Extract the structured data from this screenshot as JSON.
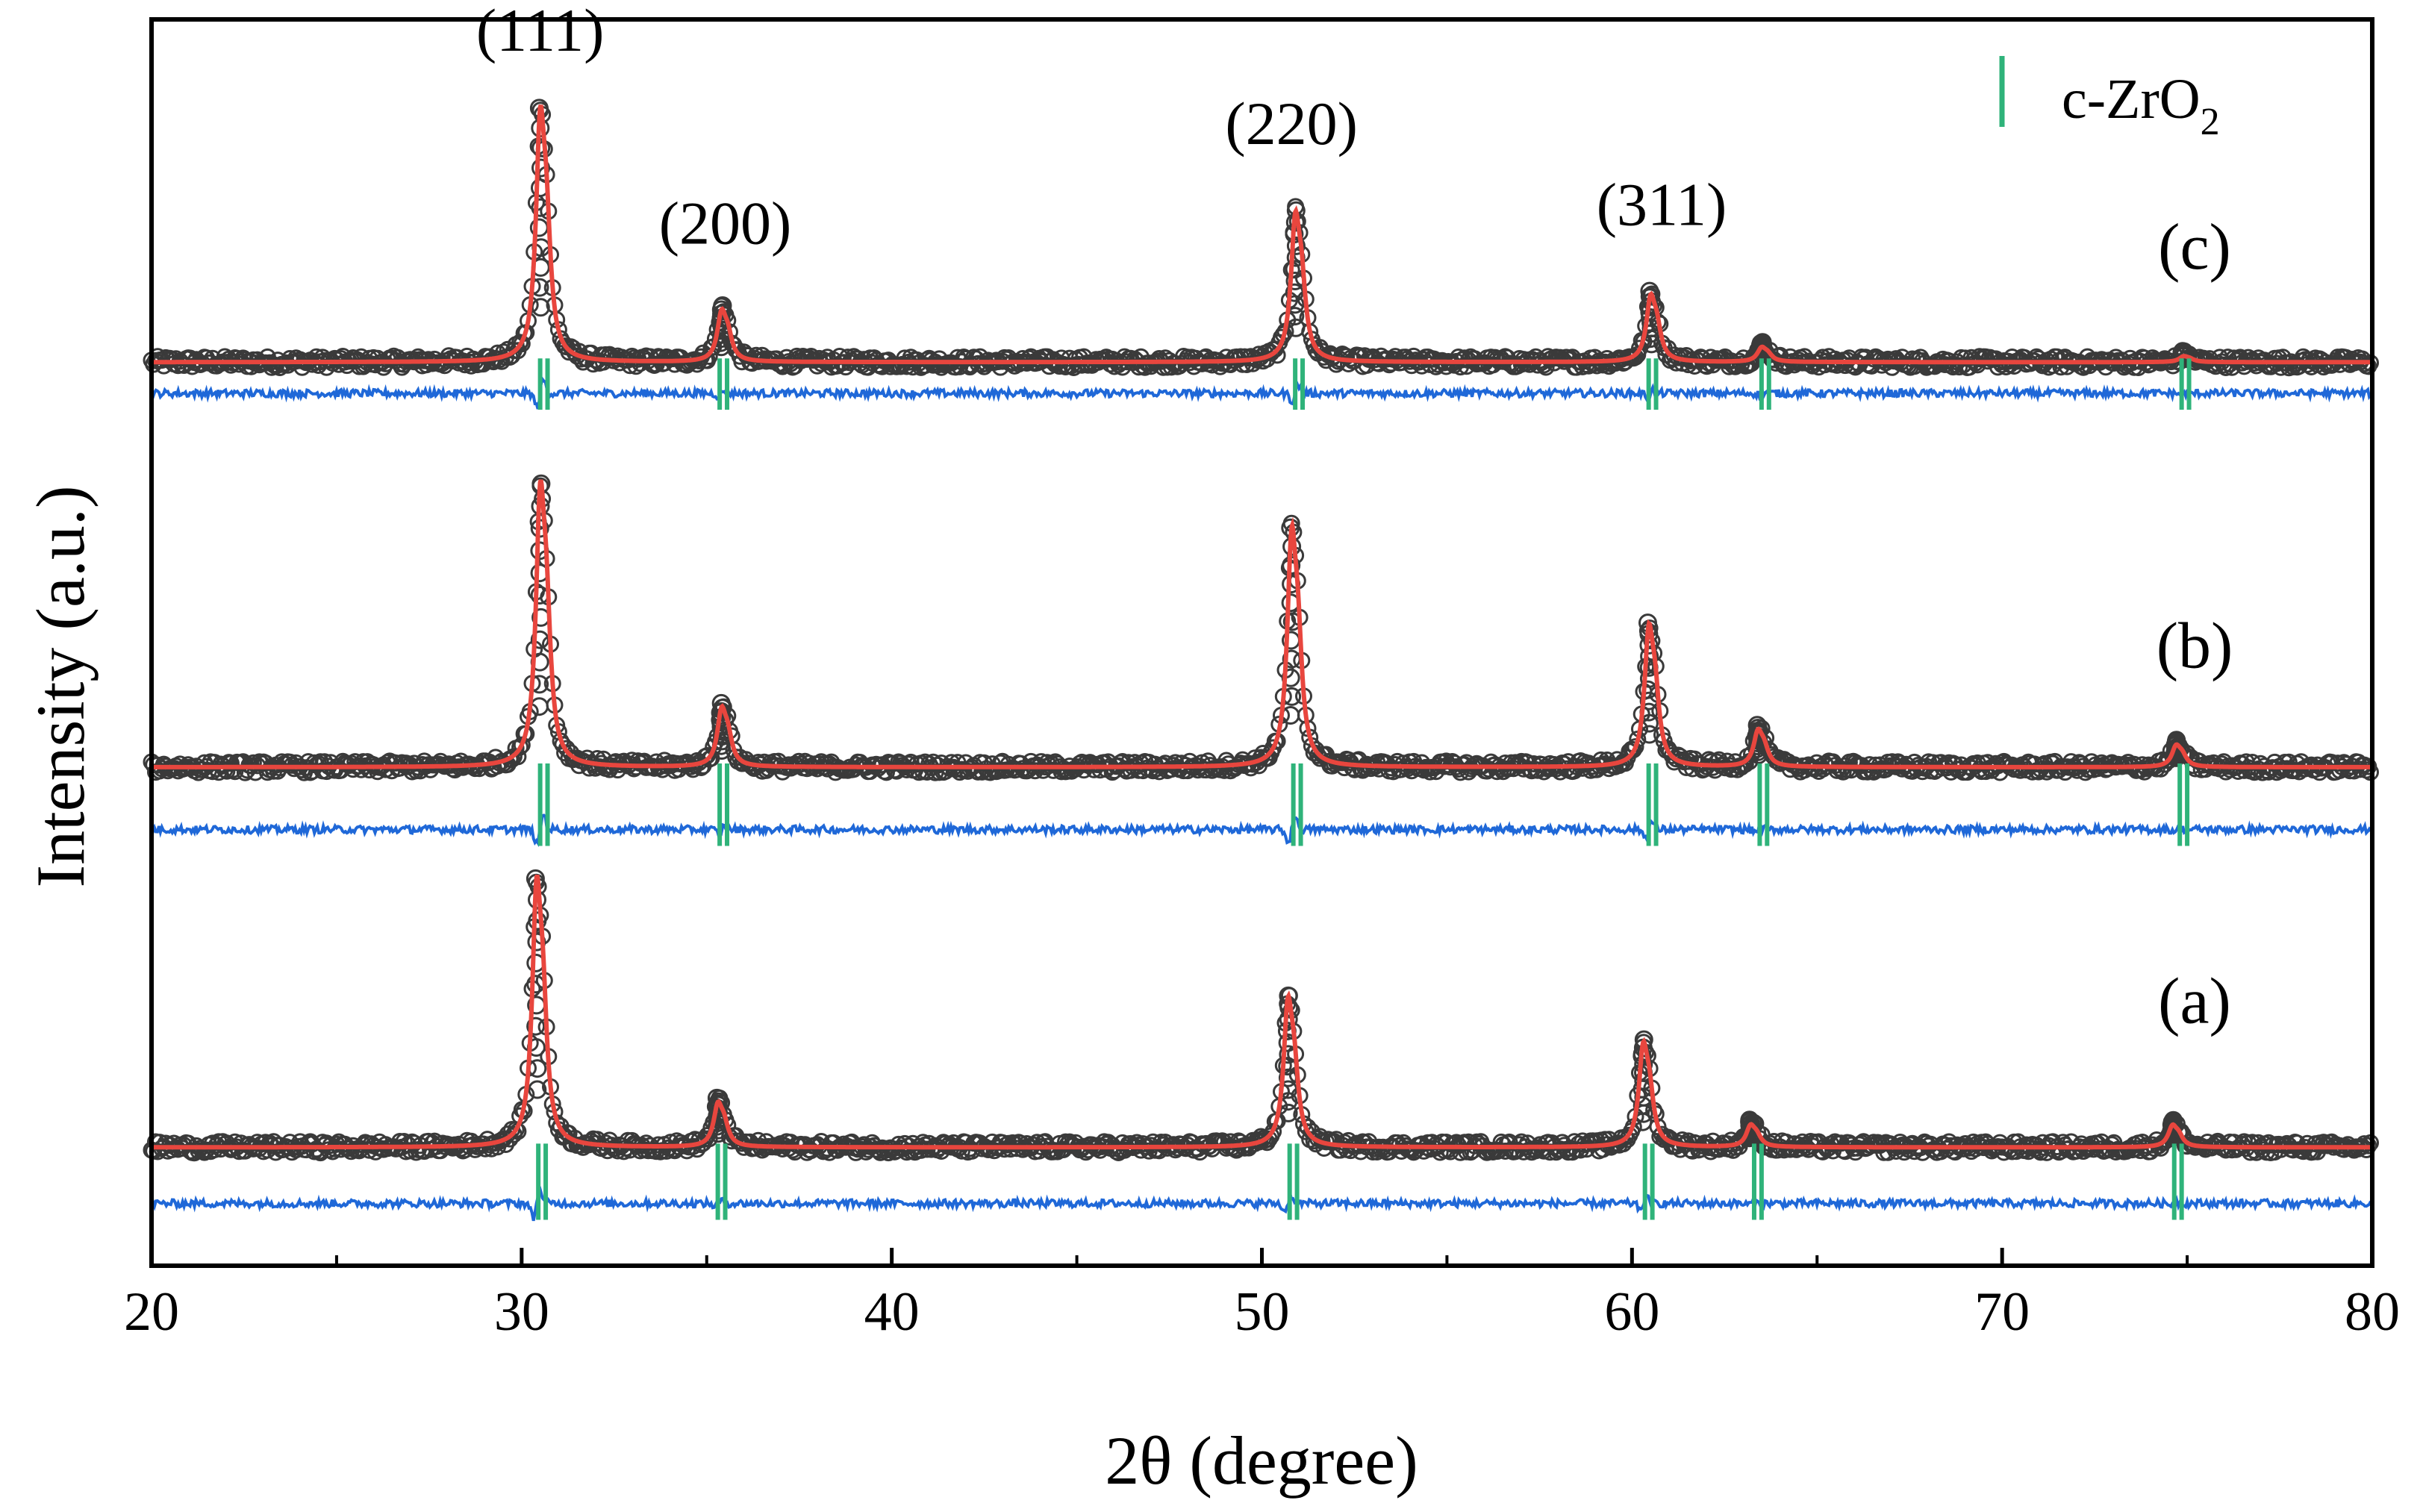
{
  "chart_data": {
    "type": "line",
    "title": "",
    "xlabel": "2θ (degree)",
    "ylabel": "Intensity (a.u.)",
    "xlim": [
      20,
      80
    ],
    "ylim": [
      0,
      1
    ],
    "grid": false,
    "x_ticks": [
      "20",
      "30",
      "40",
      "50",
      "60",
      "70",
      "80"
    ],
    "x_tick_values": [
      20,
      30,
      40,
      50,
      60,
      70,
      80
    ],
    "x_minor_ticks": [
      25,
      35,
      45,
      55,
      65,
      75
    ],
    "legend": {
      "placement": "top-right",
      "entries": [
        {
          "label": "c-ZrO",
          "subscript": "2",
          "color": "#2fb37a",
          "marker": "vertical-bar"
        }
      ]
    },
    "annotations": [
      {
        "text": "(111)",
        "x": 30.5,
        "y": 0.975
      },
      {
        "text": "(200)",
        "x": 35.5,
        "y": 0.82
      },
      {
        "text": "(220)",
        "x": 50.8,
        "y": 0.9
      },
      {
        "text": "(311)",
        "x": 60.8,
        "y": 0.835
      }
    ],
    "series_styles": {
      "observed": {
        "color": "#3a3a3a",
        "marker": "open-circle"
      },
      "calculated": {
        "color": "#e8463e"
      },
      "difference": {
        "color": "#1f68d8"
      },
      "bragg": {
        "color": "#2fb37a"
      }
    },
    "samples": [
      {
        "label": "(c)",
        "baseline": 0.725,
        "label_x": 75.2,
        "label_y": 0.8,
        "difference_offset": 0.7,
        "peaks": [
          {
            "position": 30.5,
            "height": 0.17
          },
          {
            "position": 35.4,
            "height": 0.035
          },
          {
            "position": 50.9,
            "height": 0.1
          },
          {
            "position": 60.5,
            "height": 0.045
          },
          {
            "position": 63.5,
            "height": 0.01
          },
          {
            "position": 74.9,
            "height": 0.004
          }
        ],
        "bragg_positions": [
          30.5,
          35.35,
          50.9,
          60.45,
          63.5,
          74.85
        ]
      },
      {
        "label": "(b)",
        "baseline": 0.4,
        "label_x": 75.2,
        "label_y": 0.48,
        "difference_offset": 0.35,
        "peaks": [
          {
            "position": 30.5,
            "height": 0.19
          },
          {
            "position": 35.4,
            "height": 0.04
          },
          {
            "position": 50.8,
            "height": 0.16
          },
          {
            "position": 60.45,
            "height": 0.095
          },
          {
            "position": 63.4,
            "height": 0.025
          },
          {
            "position": 74.7,
            "height": 0.015
          }
        ],
        "bragg_positions": [
          30.5,
          35.35,
          50.85,
          60.45,
          63.45,
          74.8
        ]
      },
      {
        "label": "(a)",
        "baseline": 0.095,
        "label_x": 75.2,
        "label_y": 0.195,
        "difference_offset": 0.05,
        "peaks": [
          {
            "position": 30.4,
            "height": 0.18
          },
          {
            "position": 35.3,
            "height": 0.03
          },
          {
            "position": 50.7,
            "height": 0.1
          },
          {
            "position": 60.3,
            "height": 0.07
          },
          {
            "position": 63.2,
            "height": 0.015
          },
          {
            "position": 74.6,
            "height": 0.015
          }
        ],
        "bragg_positions": [
          30.45,
          35.3,
          50.75,
          60.35,
          63.3,
          74.65
        ]
      }
    ]
  }
}
